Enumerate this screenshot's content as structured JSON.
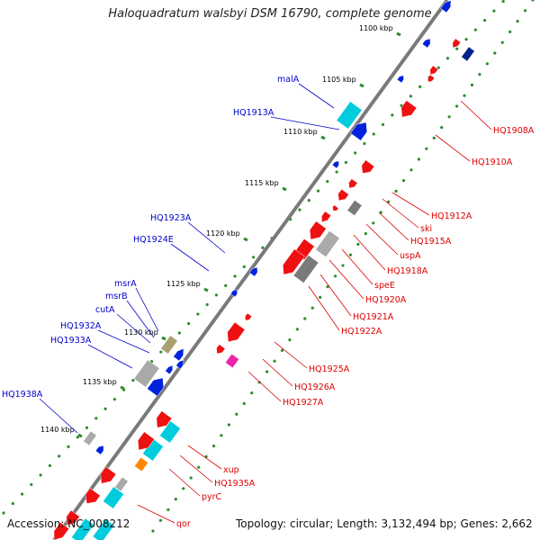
{
  "title": "Haloquadratum walsbyi DSM 16790, complete genome",
  "footer": {
    "accession_label": "Accession:",
    "accession": "NC_008212",
    "topology_label": "Topology:",
    "topology": "circular",
    "length_label": "Length:",
    "length": "3,132,494 bp",
    "genes_label": "Genes:",
    "genes": "2,662"
  },
  "colors": {
    "backbone": "#7a7a7a",
    "tick_ring": "#2e8b2e",
    "forward_label": "#0000cc",
    "reverse_label": "#dd0000",
    "forward_gene": "#0022dd",
    "reverse_gene": "#ee1111",
    "rna_gene": "#00ccdd",
    "other_gene": "#aaaaaa",
    "special_gene": "#ee22aa",
    "orange_gene": "#ff8800",
    "olive_gene": "#aaa070",
    "dark_gene": "#002288"
  },
  "diagram": {
    "kbp_labels": [
      "1100 kbp",
      "1105 kbp",
      "1110 kbp",
      "1115 kbp",
      "1120 kbp",
      "1125 kbp",
      "1130 kbp",
      "1135 kbp",
      "1140 kbp"
    ],
    "forward_labels": [
      "malA",
      "HQ1913A",
      "HQ1923A",
      "HQ1924E",
      "msrA",
      "msrB",
      "cutA",
      "HQ1932A",
      "HQ1933A",
      "HQ1938A"
    ],
    "reverse_labels": [
      "HQ1908A",
      "HQ1910A",
      "HQ1912A",
      "ski",
      "HQ1915A",
      "uspA",
      "HQ1918A",
      "speE",
      "HQ1920A",
      "HQ1921A",
      "HQ1922A",
      "HQ1925A",
      "HQ1926A",
      "HQ1927A",
      "xup",
      "HQ1935A",
      "pyrC",
      "qor"
    ]
  }
}
